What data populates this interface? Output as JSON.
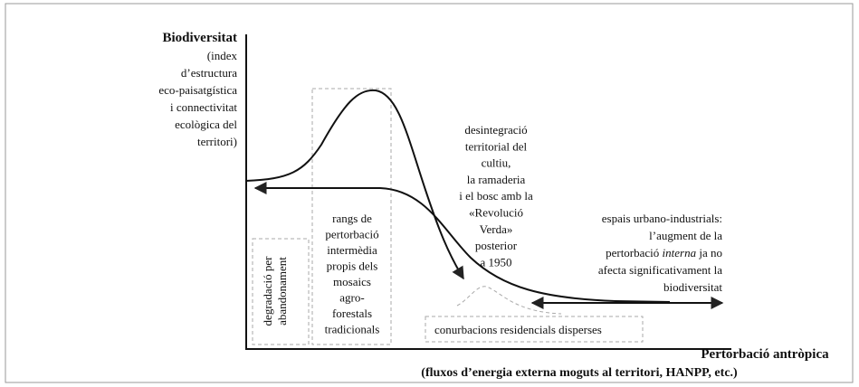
{
  "y_axis": {
    "title": "Biodiversitat",
    "lines": [
      "(index",
      "d’estructura",
      "eco-paisatgística",
      "i connectivitat",
      "ecològica del",
      "territori)"
    ]
  },
  "x_axis": {
    "title": "Pertorbació antròpica",
    "subtitle": "(fluxos d’energia externa moguts al territori, HANPP, etc.)"
  },
  "abandonment": [
    "degradació per",
    "abandonament"
  ],
  "intermediate": [
    "rangs de",
    "pertorbació",
    "intermèdia",
    "propis dels",
    "mosaics",
    "agro-",
    "forestals",
    "tradicionals"
  ],
  "green_revolution": [
    "desintegració",
    "territorial del",
    "cultiu,",
    "la ramaderia",
    "i el bosc amb la",
    "«Revolució",
    "Verda»",
    "posterior",
    "a 1950"
  ],
  "urban": {
    "line1": "espais urbano-industrials:",
    "line2": "l’augment de la",
    "line3": [
      "pertorbació",
      "interna",
      "ja no"
    ],
    "line4": "afecta significativament la",
    "line5": "biodiversitat"
  },
  "conurbation": "conurbacions residencials disperses"
}
